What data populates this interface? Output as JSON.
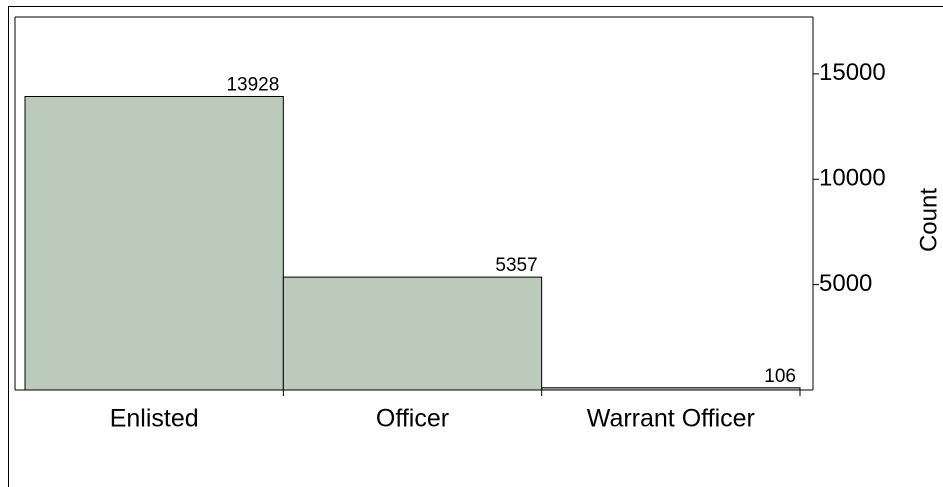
{
  "chart_data": {
    "type": "bar",
    "y_label": "Count",
    "categories": [
      "Enlisted",
      "Officer",
      "Warrant Officer"
    ],
    "values": [
      13928,
      5357,
      106
    ],
    "color": "#bccabb",
    "ylim": [
      0,
      17700
    ],
    "yticks": [
      5000,
      10000,
      15000
    ],
    "y_axis_side": "right"
  }
}
